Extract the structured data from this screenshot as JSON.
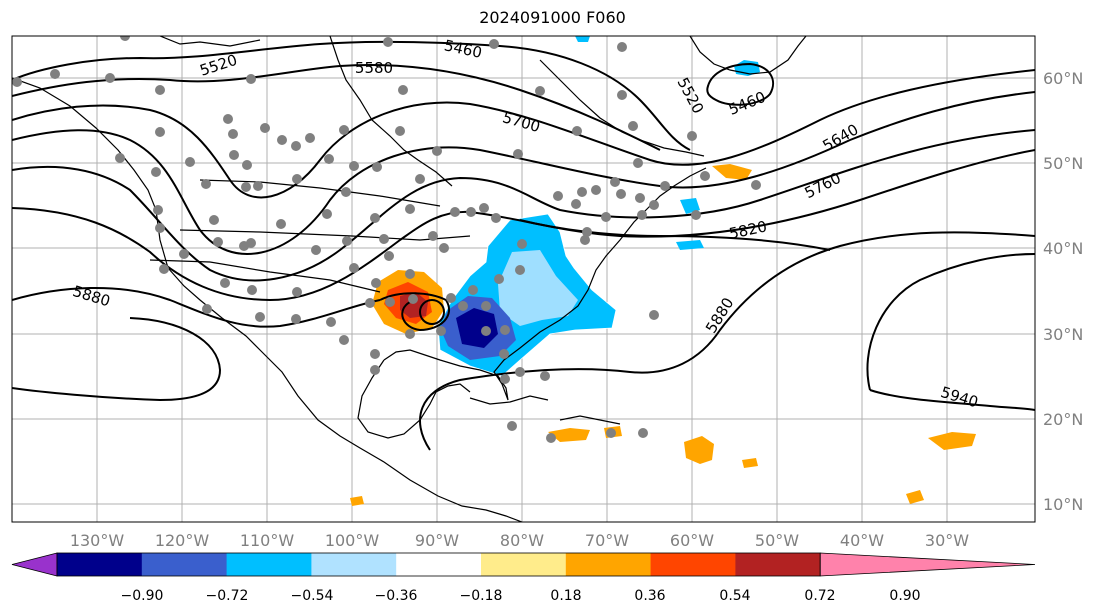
{
  "title": "2024091000 F060",
  "map": {
    "lon_ticks": [
      "130°W",
      "120°W",
      "110°W",
      "100°W",
      "90°W",
      "80°W",
      "70°W",
      "60°W",
      "50°W",
      "40°W",
      "30°W"
    ],
    "lat_ticks": [
      "60°N",
      "50°N",
      "40°N",
      "30°N",
      "20°N",
      "10°N"
    ],
    "contour_labels": [
      "5520",
      "5460",
      "5580",
      "5700",
      "5520",
      "5460",
      "5640",
      "5760",
      "5820",
      "5880",
      "5880",
      "5940"
    ],
    "colors": {
      "contour": "#000000",
      "grid": "#b0b0b0",
      "station": "#808080"
    }
  },
  "colorbar": {
    "ticks": [
      "−0.90",
      "−0.72",
      "−0.54",
      "−0.36",
      "−0.18",
      "0.18",
      "0.36",
      "0.54",
      "0.72",
      "0.90"
    ],
    "colors": [
      "#9932cc",
      "#00008b",
      "#3a5fcd",
      "#00bfff",
      "#b0e2ff",
      "#ffffff",
      "#ffec8b",
      "#ffa500",
      "#ff4500",
      "#b22222",
      "#ff82ab"
    ]
  }
}
